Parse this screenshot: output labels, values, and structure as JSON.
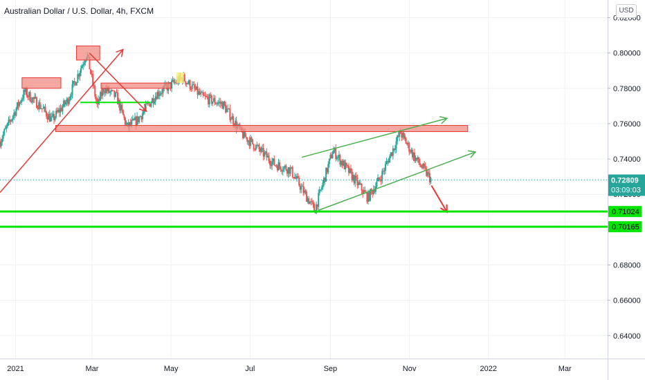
{
  "chart_title": "Australian Dollar / U.S. Dollar, 4h, FXCM",
  "currency_button": "USD",
  "colors": {
    "up": "#26a69a",
    "down": "#ef5350",
    "support": "#00e600",
    "channel": "#4caf50",
    "zone_fill": "#f28b82",
    "zone_stroke": "#e53935",
    "arrow_red": "#e53935",
    "current_price": "#26a69a"
  },
  "chart_data": {
    "type": "candlestick",
    "y_ticks": [
      "0.82000",
      "0.80000",
      "0.78000",
      "0.76000",
      "0.74000",
      "0.72000",
      "0.68000",
      "0.66000",
      "0.64000"
    ],
    "ylim": [
      0.627,
      0.83
    ],
    "x_ticks": [
      {
        "label": "2021",
        "date": "2021-01-01"
      },
      {
        "label": "Mar",
        "date": "2021-03-01"
      },
      {
        "label": "May",
        "date": "2021-05-01"
      },
      {
        "label": "Jul",
        "date": "2021-07-01"
      },
      {
        "label": "Sep",
        "date": "2021-09-01"
      },
      {
        "label": "Nov",
        "date": "2021-11-01"
      },
      {
        "label": "2022",
        "date": "2022-01-01"
      },
      {
        "label": "Mar",
        "date": "2022-03-01"
      }
    ],
    "price_path": [
      [
        "2020-12-20",
        0.75
      ],
      [
        "2021-01-08",
        0.778
      ],
      [
        "2021-01-20",
        0.77
      ],
      [
        "2021-01-29",
        0.762
      ],
      [
        "2021-02-10",
        0.773
      ],
      [
        "2021-02-25",
        0.8
      ],
      [
        "2021-03-05",
        0.77
      ],
      [
        "2021-03-10",
        0.78
      ],
      [
        "2021-03-20",
        0.775
      ],
      [
        "2021-03-28",
        0.758
      ],
      [
        "2021-04-05",
        0.762
      ],
      [
        "2021-04-20",
        0.777
      ],
      [
        "2021-05-10",
        0.786
      ],
      [
        "2021-05-25",
        0.775
      ],
      [
        "2021-06-10",
        0.771
      ],
      [
        "2021-06-25",
        0.754
      ],
      [
        "2021-07-01",
        0.75
      ],
      [
        "2021-07-20",
        0.737
      ],
      [
        "2021-08-01",
        0.734
      ],
      [
        "2021-08-20",
        0.711
      ],
      [
        "2021-09-03",
        0.745
      ],
      [
        "2021-09-20",
        0.728
      ],
      [
        "2021-09-30",
        0.718
      ],
      [
        "2021-10-10",
        0.73
      ],
      [
        "2021-10-25",
        0.755
      ],
      [
        "2021-11-05",
        0.741
      ],
      [
        "2021-11-18",
        0.72809
      ]
    ],
    "current_price": {
      "value": "0.72809",
      "countdown": "03:09:03"
    },
    "horizontal_levels": [
      {
        "price": 0.71024,
        "label": "0.71024"
      },
      {
        "price": 0.70165,
        "label": "0.70165"
      }
    ],
    "zones": [
      {
        "x1": "2021-01-06",
        "x2": "2021-02-05",
        "y1": 0.78,
        "y2": 0.786
      },
      {
        "x1": "2021-02-17",
        "x2": "2021-03-07",
        "y1": 0.796,
        "y2": 0.804
      },
      {
        "x1": "2021-03-08",
        "x2": "2021-05-01",
        "y1": 0.78,
        "y2": 0.783
      },
      {
        "x1": "2021-02-01",
        "x2": "2021-12-16",
        "y1": 0.7555,
        "y2": 0.759
      }
    ],
    "highlight_zone": {
      "x1": "2021-05-05",
      "x2": "2021-05-11",
      "y1": 0.783,
      "y2": 0.789
    },
    "red_arrows": [
      {
        "from": [
          "2020-12-20",
          0.721
        ],
        "to": [
          "2021-03-25",
          0.802
        ]
      },
      {
        "from": [
          "2021-02-27",
          0.8
        ],
        "to": [
          "2021-04-12",
          0.767
        ]
      },
      {
        "from": [
          "2021-11-18",
          0.725
        ],
        "to": [
          "2021-11-30",
          0.71
        ]
      }
    ],
    "green_arrows": [
      {
        "from": [
          "2021-08-23",
          0.711
        ],
        "to": [
          "2021-12-22",
          0.744
        ]
      },
      {
        "from": [
          "2021-08-10",
          0.741
        ],
        "to": [
          "2021-11-30",
          0.763
        ]
      }
    ],
    "green_line": {
      "from": [
        "2021-02-20",
        0.772
      ],
      "to": [
        "2021-04-15",
        0.772
      ]
    }
  }
}
